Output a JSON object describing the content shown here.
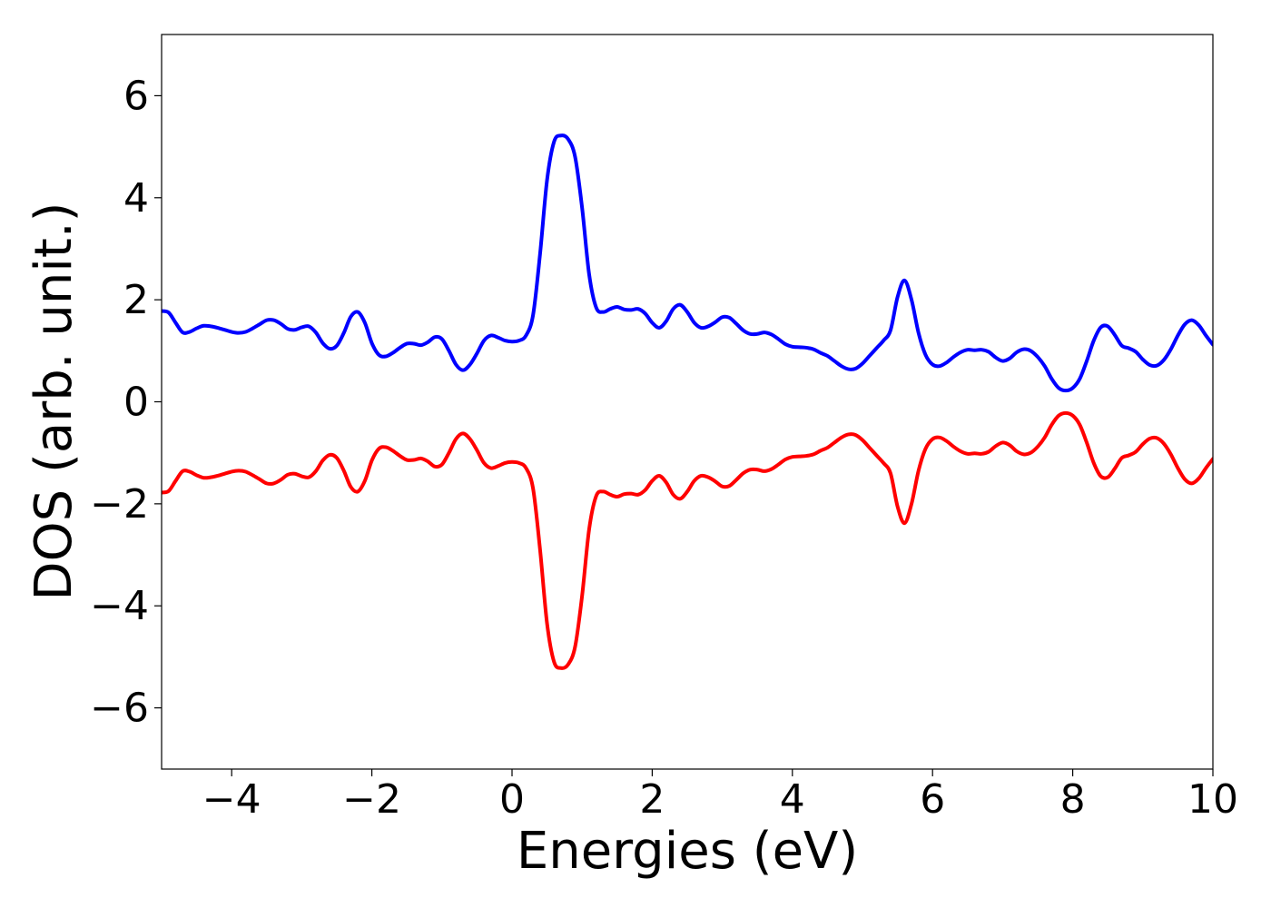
{
  "chart_data": {
    "type": "line",
    "xlabel": "Energies (eV)",
    "ylabel": "DOS (arb. unit.)",
    "xlim": [
      -5,
      10
    ],
    "ylim": [
      -7.2,
      7.2
    ],
    "xticks": [
      -4,
      -2,
      0,
      2,
      4,
      6,
      8,
      10
    ],
    "yticks": [
      -6,
      -4,
      -2,
      0,
      2,
      4,
      6
    ],
    "xtick_labels": [
      "−4",
      "−2",
      "0",
      "2",
      "4",
      "6",
      "8",
      "10"
    ],
    "ytick_labels": [
      "−6",
      "−4",
      "−2",
      "0",
      "2",
      "4",
      "6"
    ],
    "grid": false,
    "legend": "none",
    "series": [
      {
        "color": "#0000ff",
        "points": [
          [
            -5.0,
            1.78
          ],
          [
            -4.9,
            1.75
          ],
          [
            -4.8,
            1.55
          ],
          [
            -4.7,
            1.36
          ],
          [
            -4.6,
            1.37
          ],
          [
            -4.5,
            1.44
          ],
          [
            -4.4,
            1.49
          ],
          [
            -4.3,
            1.48
          ],
          [
            -4.2,
            1.45
          ],
          [
            -4.0,
            1.37
          ],
          [
            -3.9,
            1.35
          ],
          [
            -3.8,
            1.37
          ],
          [
            -3.7,
            1.44
          ],
          [
            -3.6,
            1.52
          ],
          [
            -3.5,
            1.6
          ],
          [
            -3.4,
            1.6
          ],
          [
            -3.3,
            1.53
          ],
          [
            -3.2,
            1.43
          ],
          [
            -3.1,
            1.41
          ],
          [
            -3.0,
            1.46
          ],
          [
            -2.9,
            1.48
          ],
          [
            -2.8,
            1.36
          ],
          [
            -2.7,
            1.15
          ],
          [
            -2.6,
            1.04
          ],
          [
            -2.5,
            1.1
          ],
          [
            -2.4,
            1.35
          ],
          [
            -2.3,
            1.67
          ],
          [
            -2.2,
            1.76
          ],
          [
            -2.1,
            1.55
          ],
          [
            -2.0,
            1.15
          ],
          [
            -1.9,
            0.92
          ],
          [
            -1.8,
            0.89
          ],
          [
            -1.7,
            0.96
          ],
          [
            -1.6,
            1.06
          ],
          [
            -1.5,
            1.14
          ],
          [
            -1.4,
            1.14
          ],
          [
            -1.3,
            1.11
          ],
          [
            -1.2,
            1.17
          ],
          [
            -1.1,
            1.27
          ],
          [
            -1.0,
            1.23
          ],
          [
            -0.9,
            1.0
          ],
          [
            -0.8,
            0.73
          ],
          [
            -0.7,
            0.62
          ],
          [
            -0.6,
            0.73
          ],
          [
            -0.5,
            0.95
          ],
          [
            -0.4,
            1.2
          ],
          [
            -0.3,
            1.3
          ],
          [
            -0.2,
            1.26
          ],
          [
            -0.1,
            1.2
          ],
          [
            0.0,
            1.18
          ],
          [
            0.1,
            1.2
          ],
          [
            0.2,
            1.3
          ],
          [
            0.3,
            1.7
          ],
          [
            0.4,
            2.9
          ],
          [
            0.5,
            4.35
          ],
          [
            0.6,
            5.1
          ],
          [
            0.7,
            5.22
          ],
          [
            0.8,
            5.15
          ],
          [
            0.9,
            4.8
          ],
          [
            1.0,
            3.8
          ],
          [
            1.1,
            2.5
          ],
          [
            1.2,
            1.85
          ],
          [
            1.3,
            1.76
          ],
          [
            1.4,
            1.82
          ],
          [
            1.5,
            1.86
          ],
          [
            1.6,
            1.81
          ],
          [
            1.7,
            1.8
          ],
          [
            1.8,
            1.82
          ],
          [
            1.9,
            1.73
          ],
          [
            2.0,
            1.55
          ],
          [
            2.1,
            1.45
          ],
          [
            2.2,
            1.58
          ],
          [
            2.3,
            1.82
          ],
          [
            2.4,
            1.9
          ],
          [
            2.5,
            1.76
          ],
          [
            2.6,
            1.55
          ],
          [
            2.7,
            1.45
          ],
          [
            2.8,
            1.48
          ],
          [
            2.9,
            1.56
          ],
          [
            3.0,
            1.66
          ],
          [
            3.1,
            1.65
          ],
          [
            3.2,
            1.53
          ],
          [
            3.3,
            1.4
          ],
          [
            3.4,
            1.33
          ],
          [
            3.5,
            1.33
          ],
          [
            3.6,
            1.36
          ],
          [
            3.7,
            1.32
          ],
          [
            3.8,
            1.23
          ],
          [
            3.9,
            1.13
          ],
          [
            4.0,
            1.08
          ],
          [
            4.1,
            1.07
          ],
          [
            4.2,
            1.06
          ],
          [
            4.3,
            1.03
          ],
          [
            4.4,
            0.96
          ],
          [
            4.5,
            0.9
          ],
          [
            4.6,
            0.8
          ],
          [
            4.7,
            0.7
          ],
          [
            4.8,
            0.64
          ],
          [
            4.9,
            0.65
          ],
          [
            5.0,
            0.75
          ],
          [
            5.1,
            0.9
          ],
          [
            5.2,
            1.05
          ],
          [
            5.3,
            1.2
          ],
          [
            5.4,
            1.4
          ],
          [
            5.5,
            2.05
          ],
          [
            5.6,
            2.38
          ],
          [
            5.7,
            2.0
          ],
          [
            5.8,
            1.35
          ],
          [
            5.9,
            0.92
          ],
          [
            6.0,
            0.73
          ],
          [
            6.1,
            0.7
          ],
          [
            6.2,
            0.77
          ],
          [
            6.3,
            0.88
          ],
          [
            6.4,
            0.97
          ],
          [
            6.5,
            1.02
          ],
          [
            6.6,
            1.01
          ],
          [
            6.7,
            1.02
          ],
          [
            6.8,
            0.98
          ],
          [
            6.9,
            0.87
          ],
          [
            7.0,
            0.8
          ],
          [
            7.1,
            0.85
          ],
          [
            7.2,
            0.97
          ],
          [
            7.3,
            1.03
          ],
          [
            7.4,
            1.0
          ],
          [
            7.5,
            0.88
          ],
          [
            7.6,
            0.7
          ],
          [
            7.7,
            0.45
          ],
          [
            7.8,
            0.27
          ],
          [
            7.9,
            0.22
          ],
          [
            8.0,
            0.27
          ],
          [
            8.1,
            0.45
          ],
          [
            8.2,
            0.8
          ],
          [
            8.3,
            1.2
          ],
          [
            8.4,
            1.46
          ],
          [
            8.5,
            1.48
          ],
          [
            8.6,
            1.31
          ],
          [
            8.7,
            1.1
          ],
          [
            8.8,
            1.05
          ],
          [
            8.9,
            0.98
          ],
          [
            9.0,
            0.83
          ],
          [
            9.1,
            0.72
          ],
          [
            9.2,
            0.71
          ],
          [
            9.3,
            0.82
          ],
          [
            9.4,
            1.03
          ],
          [
            9.5,
            1.3
          ],
          [
            9.6,
            1.52
          ],
          [
            9.7,
            1.6
          ],
          [
            9.8,
            1.5
          ],
          [
            9.9,
            1.3
          ],
          [
            10.0,
            1.12
          ]
        ]
      },
      {
        "color": "#ff0000",
        "points": [
          [
            -5.0,
            -1.78
          ],
          [
            -4.9,
            -1.75
          ],
          [
            -4.8,
            -1.55
          ],
          [
            -4.7,
            -1.36
          ],
          [
            -4.6,
            -1.37
          ],
          [
            -4.5,
            -1.44
          ],
          [
            -4.4,
            -1.49
          ],
          [
            -4.3,
            -1.48
          ],
          [
            -4.2,
            -1.45
          ],
          [
            -4.0,
            -1.37
          ],
          [
            -3.9,
            -1.35
          ],
          [
            -3.8,
            -1.37
          ],
          [
            -3.7,
            -1.44
          ],
          [
            -3.6,
            -1.52
          ],
          [
            -3.5,
            -1.6
          ],
          [
            -3.4,
            -1.6
          ],
          [
            -3.3,
            -1.53
          ],
          [
            -3.2,
            -1.43
          ],
          [
            -3.1,
            -1.41
          ],
          [
            -3.0,
            -1.46
          ],
          [
            -2.9,
            -1.48
          ],
          [
            -2.8,
            -1.36
          ],
          [
            -2.7,
            -1.15
          ],
          [
            -2.6,
            -1.04
          ],
          [
            -2.5,
            -1.1
          ],
          [
            -2.4,
            -1.35
          ],
          [
            -2.3,
            -1.67
          ],
          [
            -2.2,
            -1.76
          ],
          [
            -2.1,
            -1.55
          ],
          [
            -2.0,
            -1.15
          ],
          [
            -1.9,
            -0.92
          ],
          [
            -1.8,
            -0.89
          ],
          [
            -1.7,
            -0.96
          ],
          [
            -1.6,
            -1.06
          ],
          [
            -1.5,
            -1.14
          ],
          [
            -1.4,
            -1.14
          ],
          [
            -1.3,
            -1.11
          ],
          [
            -1.2,
            -1.17
          ],
          [
            -1.1,
            -1.27
          ],
          [
            -1.0,
            -1.23
          ],
          [
            -0.9,
            -1.0
          ],
          [
            -0.8,
            -0.73
          ],
          [
            -0.7,
            -0.62
          ],
          [
            -0.6,
            -0.73
          ],
          [
            -0.5,
            -0.95
          ],
          [
            -0.4,
            -1.2
          ],
          [
            -0.3,
            -1.3
          ],
          [
            -0.2,
            -1.26
          ],
          [
            -0.1,
            -1.2
          ],
          [
            0.0,
            -1.18
          ],
          [
            0.1,
            -1.2
          ],
          [
            0.2,
            -1.3
          ],
          [
            0.3,
            -1.7
          ],
          [
            0.4,
            -2.9
          ],
          [
            0.5,
            -4.35
          ],
          [
            0.6,
            -5.1
          ],
          [
            0.7,
            -5.22
          ],
          [
            0.8,
            -5.15
          ],
          [
            0.9,
            -4.8
          ],
          [
            1.0,
            -3.8
          ],
          [
            1.1,
            -2.5
          ],
          [
            1.2,
            -1.85
          ],
          [
            1.3,
            -1.76
          ],
          [
            1.4,
            -1.82
          ],
          [
            1.5,
            -1.86
          ],
          [
            1.6,
            -1.81
          ],
          [
            1.7,
            -1.8
          ],
          [
            1.8,
            -1.82
          ],
          [
            1.9,
            -1.73
          ],
          [
            2.0,
            -1.55
          ],
          [
            2.1,
            -1.45
          ],
          [
            2.2,
            -1.58
          ],
          [
            2.3,
            -1.82
          ],
          [
            2.4,
            -1.9
          ],
          [
            2.5,
            -1.76
          ],
          [
            2.6,
            -1.55
          ],
          [
            2.7,
            -1.45
          ],
          [
            2.8,
            -1.48
          ],
          [
            2.9,
            -1.56
          ],
          [
            3.0,
            -1.66
          ],
          [
            3.1,
            -1.65
          ],
          [
            3.2,
            -1.53
          ],
          [
            3.3,
            -1.4
          ],
          [
            3.4,
            -1.33
          ],
          [
            3.5,
            -1.33
          ],
          [
            3.6,
            -1.36
          ],
          [
            3.7,
            -1.32
          ],
          [
            3.8,
            -1.23
          ],
          [
            3.9,
            -1.13
          ],
          [
            4.0,
            -1.08
          ],
          [
            4.1,
            -1.07
          ],
          [
            4.2,
            -1.06
          ],
          [
            4.3,
            -1.03
          ],
          [
            4.4,
            -0.96
          ],
          [
            4.5,
            -0.9
          ],
          [
            4.6,
            -0.8
          ],
          [
            4.7,
            -0.7
          ],
          [
            4.8,
            -0.64
          ],
          [
            4.9,
            -0.65
          ],
          [
            5.0,
            -0.75
          ],
          [
            5.1,
            -0.9
          ],
          [
            5.2,
            -1.05
          ],
          [
            5.3,
            -1.2
          ],
          [
            5.4,
            -1.4
          ],
          [
            5.5,
            -2.05
          ],
          [
            5.6,
            -2.38
          ],
          [
            5.7,
            -2.0
          ],
          [
            5.8,
            -1.35
          ],
          [
            5.9,
            -0.92
          ],
          [
            6.0,
            -0.73
          ],
          [
            6.1,
            -0.7
          ],
          [
            6.2,
            -0.77
          ],
          [
            6.3,
            -0.88
          ],
          [
            6.4,
            -0.97
          ],
          [
            6.5,
            -1.02
          ],
          [
            6.6,
            -1.01
          ],
          [
            6.7,
            -1.02
          ],
          [
            6.8,
            -0.98
          ],
          [
            6.9,
            -0.87
          ],
          [
            7.0,
            -0.8
          ],
          [
            7.1,
            -0.85
          ],
          [
            7.2,
            -0.97
          ],
          [
            7.3,
            -1.03
          ],
          [
            7.4,
            -1.0
          ],
          [
            7.5,
            -0.88
          ],
          [
            7.6,
            -0.7
          ],
          [
            7.7,
            -0.45
          ],
          [
            7.8,
            -0.27
          ],
          [
            7.9,
            -0.22
          ],
          [
            8.0,
            -0.27
          ],
          [
            8.1,
            -0.45
          ],
          [
            8.2,
            -0.8
          ],
          [
            8.3,
            -1.2
          ],
          [
            8.4,
            -1.46
          ],
          [
            8.5,
            -1.48
          ],
          [
            8.6,
            -1.31
          ],
          [
            8.7,
            -1.1
          ],
          [
            8.8,
            -1.05
          ],
          [
            8.9,
            -0.98
          ],
          [
            9.0,
            -0.83
          ],
          [
            9.1,
            -0.72
          ],
          [
            9.2,
            -0.71
          ],
          [
            9.3,
            -0.82
          ],
          [
            9.4,
            -1.03
          ],
          [
            9.5,
            -1.3
          ],
          [
            9.6,
            -1.52
          ],
          [
            9.7,
            -1.6
          ],
          [
            9.8,
            -1.5
          ],
          [
            9.9,
            -1.3
          ],
          [
            10.0,
            -1.12
          ]
        ]
      }
    ]
  }
}
